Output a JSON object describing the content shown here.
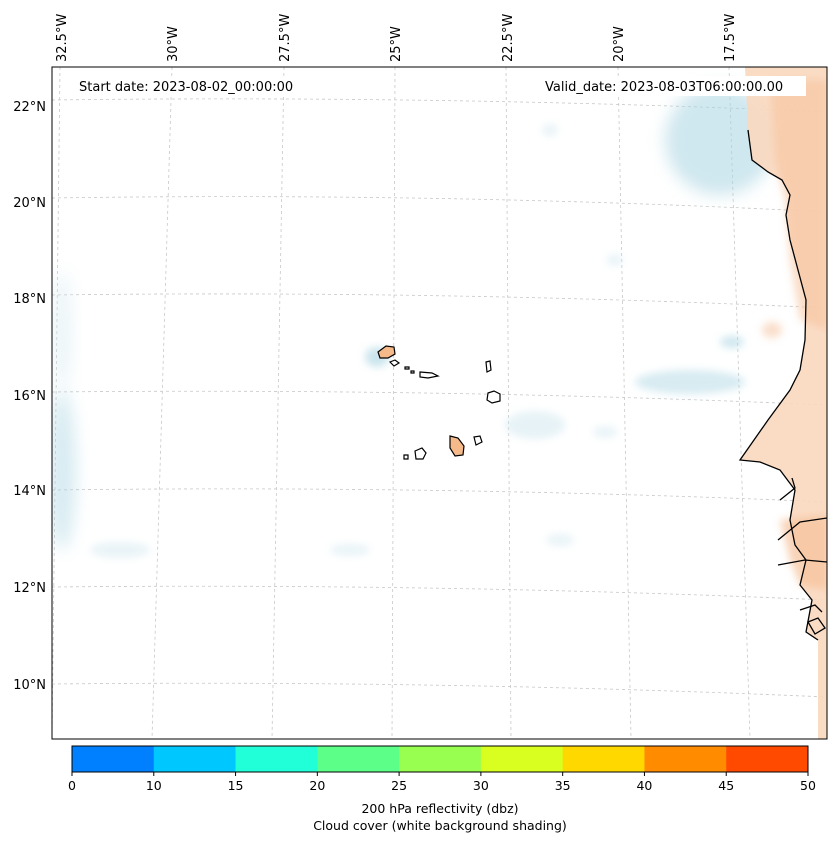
{
  "map": {
    "start_date": "Start date: 2023-08-02_00:00:00",
    "valid_date": "Valid_date: 2023-08-03T06:00:00.00",
    "lon_labels": [
      "32.5°W",
      "30°W",
      "27.5°W",
      "25°W",
      "22.5°W",
      "20°W",
      "17.5°W"
    ],
    "lat_labels": [
      "22°N",
      "20°N",
      "18°N",
      "16°N",
      "14°N",
      "12°N",
      "10°N"
    ],
    "region": "Eastern tropical Atlantic, Cabo Verde islands and West African coast"
  },
  "colorbar": {
    "ticks": [
      "0",
      "10",
      "15",
      "20",
      "25",
      "30",
      "35",
      "40",
      "45",
      "50"
    ],
    "colors": [
      "#0080ff",
      "#00c8ff",
      "#20ffd8",
      "#5cff88",
      "#98ff50",
      "#d8ff20",
      "#ffd800",
      "#ff8c00",
      "#ff4a00"
    ],
    "label_line1": "200 hPa reflectivity (dbz)",
    "label_line2": "Cloud cover (white background shading)"
  }
}
